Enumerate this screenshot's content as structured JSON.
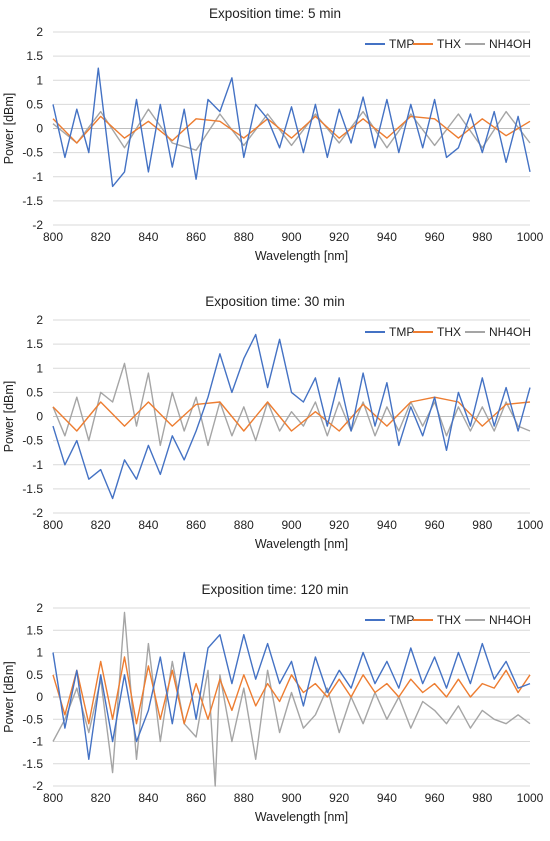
{
  "chart_data": [
    {
      "type": "line",
      "title": "Exposition time: 5 min",
      "xlabel": "Wavelength [nm]",
      "ylabel": "Power [dBm]",
      "xlim": [
        800,
        1000
      ],
      "ylim": [
        -2,
        2
      ],
      "xticks": [
        800,
        820,
        840,
        860,
        880,
        900,
        920,
        940,
        960,
        980,
        1000
      ],
      "yticks": [
        2,
        1.5,
        1,
        0.5,
        0,
        -0.5,
        -1,
        -1.5,
        -2
      ],
      "ytick_labels": [
        "2",
        "1.5",
        "1",
        "0.5",
        "0",
        "-0.5",
        "-1",
        "-1.5",
        "-2"
      ],
      "grid": true,
      "legend_position": "top-right",
      "series": [
        {
          "name": "TMP",
          "color": "#4472C4",
          "x": [
            800,
            805,
            810,
            815,
            819,
            825,
            830,
            835,
            840,
            845,
            850,
            855,
            860,
            865,
            870,
            875,
            880,
            885,
            890,
            895,
            900,
            905,
            910,
            915,
            920,
            925,
            930,
            935,
            940,
            945,
            950,
            955,
            960,
            965,
            970,
            975,
            980,
            985,
            990,
            995,
            1000
          ],
          "y": [
            0.5,
            -0.6,
            0.4,
            -0.5,
            1.25,
            -1.2,
            -0.9,
            0.6,
            -0.9,
            0.5,
            -0.8,
            0.4,
            -1.05,
            0.6,
            0.35,
            1.05,
            -0.6,
            0.5,
            0.2,
            -0.4,
            0.45,
            -0.5,
            0.5,
            -0.6,
            0.4,
            -0.3,
            0.65,
            -0.4,
            0.6,
            -0.5,
            0.5,
            -0.4,
            0.6,
            -0.6,
            -0.4,
            0.3,
            -0.5,
            0.35,
            -0.7,
            0.25,
            -0.9
          ]
        },
        {
          "name": "THX",
          "color": "#ED7D31",
          "x": [
            800,
            810,
            820,
            830,
            840,
            850,
            860,
            870,
            880,
            890,
            900,
            910,
            920,
            930,
            940,
            950,
            960,
            970,
            980,
            990,
            1000
          ],
          "y": [
            0.2,
            -0.3,
            0.25,
            -0.2,
            0.15,
            -0.25,
            0.2,
            0.15,
            -0.2,
            0.2,
            -0.2,
            0.25,
            -0.2,
            0.2,
            -0.2,
            0.25,
            0.2,
            -0.2,
            0.2,
            -0.15,
            0.15
          ]
        },
        {
          "name": "NH4OH",
          "color": "#A5A5A5",
          "x": [
            800,
            810,
            820,
            830,
            840,
            850,
            860,
            870,
            880,
            890,
            900,
            910,
            920,
            930,
            940,
            950,
            960,
            970,
            980,
            990,
            1000
          ],
          "y": [
            0.1,
            -0.3,
            0.35,
            -0.4,
            0.4,
            -0.3,
            -0.45,
            0.3,
            -0.35,
            0.3,
            -0.35,
            0.3,
            -0.3,
            0.35,
            -0.4,
            0.3,
            -0.35,
            0.3,
            -0.4,
            0.35,
            -0.3
          ]
        }
      ]
    },
    {
      "type": "line",
      "title": "Exposition time: 30 min",
      "xlabel": "Wavelength [nm]",
      "ylabel": "Power [dBm]",
      "xlim": [
        800,
        1000
      ],
      "ylim": [
        -2,
        2
      ],
      "xticks": [
        800,
        820,
        840,
        860,
        880,
        900,
        920,
        940,
        960,
        980,
        1000
      ],
      "yticks": [
        2,
        1.5,
        1,
        0.5,
        0,
        -0.5,
        -1,
        -1.5,
        -2
      ],
      "ytick_labels": [
        "2",
        "1.5",
        "1",
        "0.5",
        "0",
        "-0.5",
        "-1",
        "-1.5",
        "-2"
      ],
      "grid": true,
      "legend_position": "top-right",
      "series": [
        {
          "name": "TMP",
          "color": "#4472C4",
          "x": [
            800,
            805,
            810,
            815,
            820,
            825,
            830,
            835,
            840,
            845,
            850,
            855,
            860,
            865,
            870,
            875,
            880,
            885,
            890,
            895,
            900,
            905,
            910,
            915,
            920,
            925,
            930,
            935,
            940,
            945,
            950,
            955,
            960,
            965,
            970,
            975,
            980,
            985,
            990,
            995,
            1000
          ],
          "y": [
            -0.2,
            -1.0,
            -0.5,
            -1.3,
            -1.1,
            -1.7,
            -0.9,
            -1.3,
            -0.6,
            -1.2,
            -0.4,
            -0.9,
            -0.3,
            0.4,
            1.3,
            0.5,
            1.2,
            1.7,
            0.6,
            1.6,
            0.5,
            0.3,
            0.8,
            -0.2,
            0.8,
            -0.3,
            0.9,
            -0.2,
            0.7,
            -0.6,
            0.2,
            -0.4,
            0.4,
            -0.7,
            0.5,
            -0.2,
            0.8,
            -0.2,
            0.6,
            -0.3,
            0.6
          ]
        },
        {
          "name": "THX",
          "color": "#ED7D31",
          "x": [
            800,
            810,
            820,
            830,
            840,
            850,
            860,
            870,
            880,
            890,
            900,
            910,
            920,
            930,
            940,
            950,
            960,
            970,
            980,
            990,
            1000
          ],
          "y": [
            0.2,
            -0.3,
            0.3,
            -0.2,
            0.3,
            -0.2,
            0.25,
            0.3,
            -0.3,
            0.3,
            -0.3,
            0.1,
            -0.3,
            0.25,
            -0.2,
            0.3,
            0.4,
            0.3,
            -0.2,
            0.25,
            0.3
          ]
        },
        {
          "name": "NH4OH",
          "color": "#A5A5A5",
          "x": [
            800,
            805,
            810,
            815,
            820,
            825,
            830,
            835,
            840,
            845,
            850,
            855,
            860,
            865,
            870,
            875,
            880,
            885,
            890,
            895,
            900,
            905,
            910,
            915,
            920,
            925,
            930,
            935,
            940,
            945,
            950,
            955,
            960,
            965,
            970,
            975,
            980,
            985,
            990,
            995,
            1000
          ],
          "y": [
            0.2,
            -0.4,
            0.4,
            -0.5,
            0.5,
            0.3,
            1.1,
            -0.2,
            0.9,
            -0.6,
            0.5,
            -0.3,
            0.4,
            -0.6,
            0.3,
            -0.4,
            0.2,
            -0.5,
            0.3,
            -0.3,
            0.1,
            -0.2,
            0.3,
            -0.4,
            0.3,
            -0.3,
            0.3,
            -0.4,
            0.2,
            -0.3,
            0.3,
            -0.2,
            0.3,
            -0.4,
            0.2,
            -0.3,
            0.2,
            -0.3,
            0.3,
            -0.2,
            -0.3
          ]
        }
      ]
    },
    {
      "type": "line",
      "title": "Exposition time: 120 min",
      "xlabel": "Wavelength [nm]",
      "ylabel": "Power [dBm]",
      "xlim": [
        800,
        1000
      ],
      "ylim": [
        -2,
        2
      ],
      "xticks": [
        800,
        820,
        840,
        860,
        880,
        900,
        920,
        940,
        960,
        980,
        1000
      ],
      "yticks": [
        2,
        1.5,
        1,
        0.5,
        0,
        -0.5,
        -1,
        -1.5,
        -2
      ],
      "ytick_labels": [
        "2",
        "1.5",
        "1",
        "0.5",
        "0",
        "-0.5",
        "-1",
        "-1.5",
        "-2"
      ],
      "grid": true,
      "legend_position": "top-right",
      "series": [
        {
          "name": "TMP",
          "color": "#4472C4",
          "x": [
            800,
            805,
            810,
            815,
            820,
            825,
            830,
            835,
            840,
            845,
            850,
            855,
            860,
            865,
            870,
            875,
            880,
            885,
            890,
            895,
            900,
            905,
            910,
            915,
            920,
            925,
            930,
            935,
            940,
            945,
            950,
            955,
            960,
            965,
            970,
            975,
            980,
            985,
            990,
            995,
            1000
          ],
          "y": [
            1.0,
            -0.7,
            0.6,
            -1.4,
            0.5,
            -1.0,
            0.5,
            -1.0,
            -0.3,
            0.9,
            -0.6,
            1.0,
            -0.5,
            1.1,
            1.4,
            0.3,
            1.4,
            0.4,
            1.2,
            0.3,
            0.8,
            -0.2,
            0.9,
            0.1,
            0.6,
            0.2,
            1.0,
            0.3,
            0.8,
            0.2,
            1.1,
            0.3,
            0.9,
            0.2,
            1.0,
            0.3,
            1.2,
            0.4,
            0.8,
            0.2,
            0.3
          ]
        },
        {
          "name": "THX",
          "color": "#ED7D31",
          "x": [
            800,
            805,
            810,
            815,
            820,
            825,
            830,
            835,
            840,
            845,
            850,
            855,
            860,
            865,
            870,
            875,
            880,
            885,
            890,
            895,
            900,
            905,
            910,
            915,
            920,
            925,
            930,
            935,
            940,
            945,
            950,
            955,
            960,
            965,
            970,
            975,
            980,
            985,
            990,
            995,
            1000
          ],
          "y": [
            0.5,
            -0.4,
            0.6,
            -0.6,
            0.8,
            -0.5,
            0.9,
            -0.6,
            0.7,
            -0.5,
            0.6,
            -0.6,
            0.3,
            -0.5,
            0.4,
            -0.3,
            0.5,
            -0.2,
            0.3,
            -0.1,
            0.5,
            0.1,
            0.3,
            0.0,
            0.4,
            0.0,
            0.5,
            0.1,
            0.3,
            0.0,
            0.4,
            0.1,
            0.3,
            0.0,
            0.4,
            0.0,
            0.3,
            0.2,
            0.6,
            0.1,
            0.5
          ]
        },
        {
          "name": "NH4OH",
          "color": "#A5A5A5",
          "x": [
            800,
            805,
            810,
            815,
            820,
            825,
            830,
            835,
            840,
            845,
            850,
            855,
            860,
            865,
            868,
            870,
            875,
            880,
            885,
            890,
            895,
            900,
            905,
            910,
            915,
            920,
            925,
            930,
            935,
            940,
            945,
            950,
            955,
            960,
            965,
            970,
            975,
            980,
            985,
            990,
            995,
            1000
          ],
          "y": [
            -1.0,
            -0.5,
            0.2,
            -0.8,
            0.4,
            -1.7,
            1.9,
            -1.4,
            1.2,
            -1.0,
            0.8,
            -0.6,
            -0.9,
            0.6,
            -2.0,
            0.5,
            -1.0,
            0.2,
            -1.4,
            0.6,
            -0.8,
            0.1,
            -0.7,
            -0.4,
            0.2,
            -0.8,
            0.0,
            -0.6,
            0.1,
            -0.5,
            0.0,
            -0.7,
            -0.1,
            -0.3,
            -0.6,
            -0.2,
            -0.7,
            -0.3,
            -0.5,
            -0.6,
            -0.4,
            -0.6
          ]
        }
      ]
    }
  ]
}
